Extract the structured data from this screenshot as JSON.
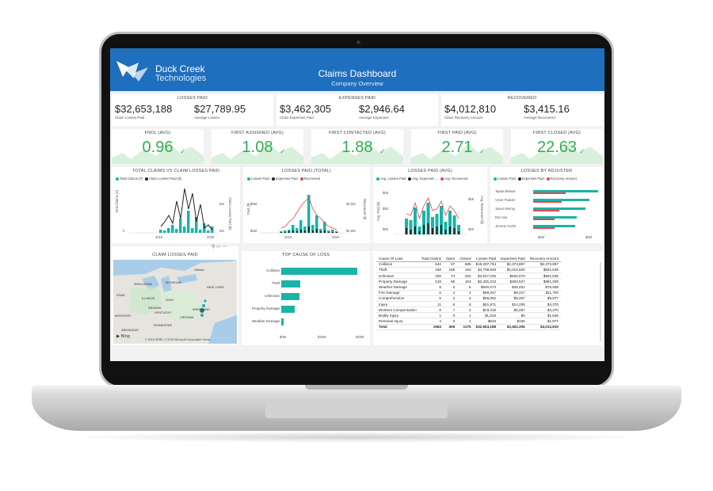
{
  "header": {
    "brand_line1": "Duck Creek",
    "brand_line2": "Technologies",
    "title": "Claims Dashboard",
    "subtitle": "Company Overview"
  },
  "summary": [
    {
      "title": "LOSSES PAID",
      "v1": "$32,653,188",
      "l1": "Claim Losses Paid",
      "v2": "$27,789.95",
      "l2": "Average Losses"
    },
    {
      "title": "EXPENSES PAID",
      "v1": "$3,462,305",
      "l1": "Claim Expenses Paid",
      "v2": "$2,946.64",
      "l2": "Average Expenses"
    },
    {
      "title": "RECOVERED",
      "v1": "$4,012,810",
      "l1": "Claim Recovery Amount",
      "v2": "$3,415.16",
      "l2": "Average Recovered"
    }
  ],
  "kpis": [
    {
      "title": "FNOL (AVG)",
      "value": "0.96"
    },
    {
      "title": "FIRST ASSIGNED (AVG)",
      "value": "1.08"
    },
    {
      "title": "FIRST CONTACTED (AVG)",
      "value": "1.88"
    },
    {
      "title": "FIRST PAID (AVG)",
      "value": "2.71"
    },
    {
      "title": "FIRST CLOSED (AVG)",
      "value": "22.63"
    }
  ],
  "colors": {
    "teal": "#1ab3a6",
    "black": "#222222",
    "red": "#e8474c",
    "blue": "#1f6fbf",
    "green": "#2fae51"
  },
  "charts": {
    "c1": {
      "title": "TOTAL CLAIMS VS CLAIM LOSSES PAID",
      "legend1": "Total Claims (#)",
      "legend2": "Claim Losses Paid ($)",
      "yleft": "Total Claims (#)",
      "yright": "Claim Losses Paid ($)",
      "y_tick_left": "0",
      "y_tick_right_top": "5M",
      "y_tick_right_bottom": "0M",
      "x_ticks": [
        "2010",
        "2020"
      ]
    },
    "c2": {
      "title": "LOSSES PAID (TOTAL)",
      "legend": [
        "Losses Paid",
        "Expenses Paid",
        "Recovered"
      ],
      "yleft": "Paid ($)",
      "yright": "Recovered ($)",
      "y_left_top": "$5M",
      "y_left_bottom": "$0M",
      "y_right_top": "$0.5M",
      "y_right_bottom": "$0.0M",
      "x_ticks": [
        "2010",
        "2020"
      ]
    },
    "c3": {
      "title": "LOSSES PAID (AVG)",
      "legend": [
        "Avg. Losses Paid",
        "Avg. Expenses ...",
        "Avg. Recovered"
      ],
      "yleft": "Avg. Paid ($)",
      "yright": "Avg. Recovered ($)",
      "y_left_top": "$0K",
      "y_left_mid": "$5K",
      "y_left_low": "$0K",
      "y_right_top": "$5K",
      "y_right_bottom": "$0K"
    },
    "c4": {
      "title": "LOSSES BY ADJUSTER",
      "legend": [
        "Losses Paid",
        "Expenses Paid",
        "Recovery Amount"
      ],
      "adjusters": [
        "Tapas Biswas",
        "Victor Podder",
        "Jason Murray",
        "Ron Niu",
        "Jerome Curtis"
      ],
      "values": [
        1,
        0.87,
        0.8,
        0.67,
        0.65
      ],
      "x_ticks": [
        "$0M",
        "$5M"
      ]
    }
  },
  "map": {
    "title": "CLAIM LOSSES PAID",
    "labels": [
      "Ottawa",
      "WISCONSIN",
      "MICHIGAN",
      "OHIO",
      "ILLINOIS",
      "IOWA",
      "KENTUCKY",
      "VIRGINIA",
      "MISSOURI",
      "ARKANSAS",
      "MARYLAND",
      "NEW YORK",
      "TENNESSEE",
      "INDIANA"
    ],
    "bing": "Bing",
    "copyright": "© 2018 HERE, © 2018 Microsoft Corporation Terms"
  },
  "cause_chart": {
    "title": "TOP CAUSE OF LOSS",
    "categories": [
      "Collision",
      "Theft",
      "Unknown",
      "Property Damage",
      "Weather Damage"
    ],
    "values": [
      19.2,
      4.7,
      4.5,
      3.3,
      0.6
    ],
    "x_ticks": [
      "$0M",
      "$10M",
      "$20M"
    ]
  },
  "table": {
    "headers": [
      "Cause Of Loss",
      "Total Claims",
      "Open",
      "Closed",
      "Losses Paid",
      "Expenses Paid",
      "Recovery Amount"
    ],
    "rows": [
      [
        "Collision",
        "642",
        "57",
        "585",
        "$19,207,784",
        "$2,373,867",
        "$2,373,867"
      ],
      [
        "Theft",
        "348",
        "185",
        "163",
        "$4,709,929",
        "$2,016,920",
        "$591,535"
      ],
      [
        "Unknown",
        "326",
        "74",
        "252",
        "$4,527,045",
        "$520,070",
        "$591,535"
      ],
      [
        "Property Damage",
        "218",
        "65",
        "153",
        "$3,325,313",
        "$352,627",
        "$381,308"
      ],
      [
        "Weather Damage",
        "8",
        "2",
        "6",
        "$646,074",
        "$46,451",
        "$76,938"
      ],
      [
        "Fire Damage",
        "6",
        "2",
        "4",
        "$89,347",
        "$9,227",
        "$11,700"
      ],
      [
        "Comprehensive",
        "6",
        "2",
        "4",
        "$65,962",
        "$5,267",
        "$9,977"
      ],
      [
        "Injury",
        "11",
        "5",
        "6",
        "$51,971",
        "$14,205",
        "$4,370"
      ],
      [
        "Workers Compensation",
        "9",
        "7",
        "2",
        "$19,418",
        "$5,267",
        "$4,370"
      ],
      [
        "Bodily Injury",
        "1",
        "0",
        "1",
        "$1,915",
        "$0",
        "$1,646"
      ],
      [
        "Personal Injury",
        "4",
        "3",
        "1",
        "$915",
        "$156",
        "$1,977"
      ]
    ],
    "total": [
      "Total",
      "1584",
      "409",
      "1175",
      "$32,653,188",
      "$3,462,305",
      "$4,012,810"
    ]
  }
}
